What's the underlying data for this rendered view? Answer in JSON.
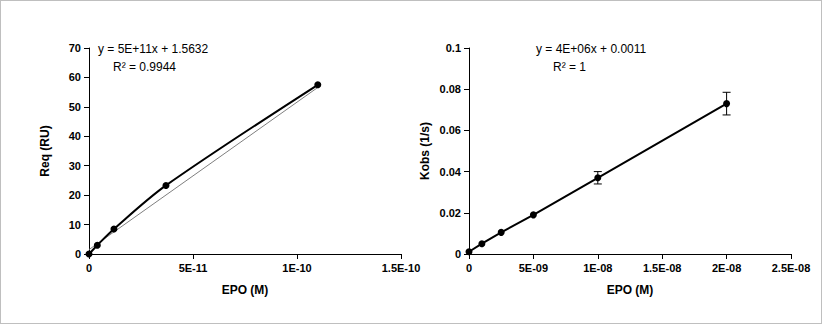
{
  "chart_data": [
    {
      "type": "line",
      "x_label": "EPO (M)",
      "y_label": "Req (RU)",
      "xlim": [
        0,
        1.5e-10
      ],
      "xticks": [
        0,
        {
          "value": 5e-11,
          "label": "5E-11"
        },
        {
          "value": 1e-10,
          "label": "1E-10"
        },
        {
          "value": 1.5e-10,
          "label": "1.5E-10"
        }
      ],
      "ylim": [
        0,
        70
      ],
      "yticks": [
        0,
        10,
        20,
        30,
        40,
        50,
        60,
        70
      ],
      "grid": false,
      "annotations": [
        "y = 5E+11x + 1.5632",
        "R² = 0.9944"
      ],
      "series": [
        {
          "type": "line",
          "marker": "circle",
          "line_style": "smooth",
          "color": "#000000",
          "x": [
            0,
            4e-12,
            1.2e-11,
            3.7e-11,
            1.1e-10
          ],
          "values": [
            0,
            3,
            8.5,
            23.3,
            57.5
          ]
        },
        {
          "type": "line",
          "marker": "none",
          "line_style": "solid",
          "color": "#7f7f7f",
          "x": [
            0,
            1.1e-10
          ],
          "values": [
            1.5,
            56.6
          ]
        }
      ]
    },
    {
      "type": "line",
      "x_label": "EPO (M)",
      "y_label": "Kobs (1/s)",
      "xlim": [
        0,
        2.5e-08
      ],
      "xticks": [
        0,
        {
          "value": 5e-09,
          "label": "5E-09"
        },
        {
          "value": 1e-08,
          "label": "1E-08"
        },
        {
          "value": 1.5e-08,
          "label": "1.5E-08"
        },
        {
          "value": 2e-08,
          "label": "2E-08"
        },
        {
          "value": 2.5e-08,
          "label": "2.5E-08"
        }
      ],
      "ylim": [
        0,
        0.1
      ],
      "yticks": [
        0,
        0.02,
        0.04,
        0.06,
        0.08,
        0.1
      ],
      "grid": false,
      "annotations": [
        "y = 4E+06x + 0.0011",
        "R² = 1"
      ],
      "series": [
        {
          "type": "line",
          "marker": "circle",
          "line_style": "solid",
          "color": "#000000",
          "x": [
            0,
            1e-09,
            2.5e-09,
            5e-09,
            1e-08,
            2e-08
          ],
          "values": [
            0.0011,
            0.005,
            0.0105,
            0.019,
            0.037,
            0.073
          ],
          "errors": [
            0,
            0,
            0,
            0,
            0.003,
            0.0055
          ]
        }
      ]
    }
  ]
}
